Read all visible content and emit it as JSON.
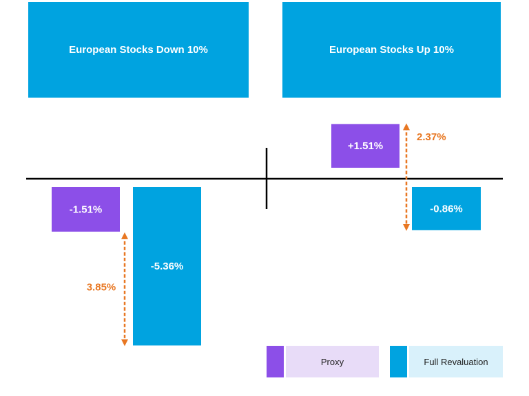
{
  "chart_data": {
    "type": "bar",
    "colors": {
      "proxy": "#8c4fe8",
      "full": "#00a3e0",
      "diff": "#e87722",
      "axis": "#000000",
      "proxy_light": "#e8dcf8",
      "full_light": "#d9f1fb"
    },
    "panels": [
      {
        "title": "European Stocks Down 10%",
        "bars": [
          {
            "series": "Proxy",
            "value": -1.51,
            "label": "-1.51%"
          },
          {
            "series": "Full Revaluation",
            "value": -5.36,
            "label": "-5.36%"
          }
        ],
        "difference": {
          "value": 3.85,
          "label": "3.85%"
        }
      },
      {
        "title": "European Stocks Up 10%",
        "bars": [
          {
            "series": "Proxy",
            "value": 1.51,
            "label": "+1.51%"
          },
          {
            "series": "Full Revaluation",
            "value": -0.86,
            "label": "-0.86%"
          }
        ],
        "difference": {
          "value": 2.37,
          "label": "2.37%"
        }
      }
    ],
    "legend": [
      {
        "name": "Proxy",
        "color": "proxy"
      },
      {
        "name": "Full Revaluation",
        "color": "full"
      }
    ]
  }
}
